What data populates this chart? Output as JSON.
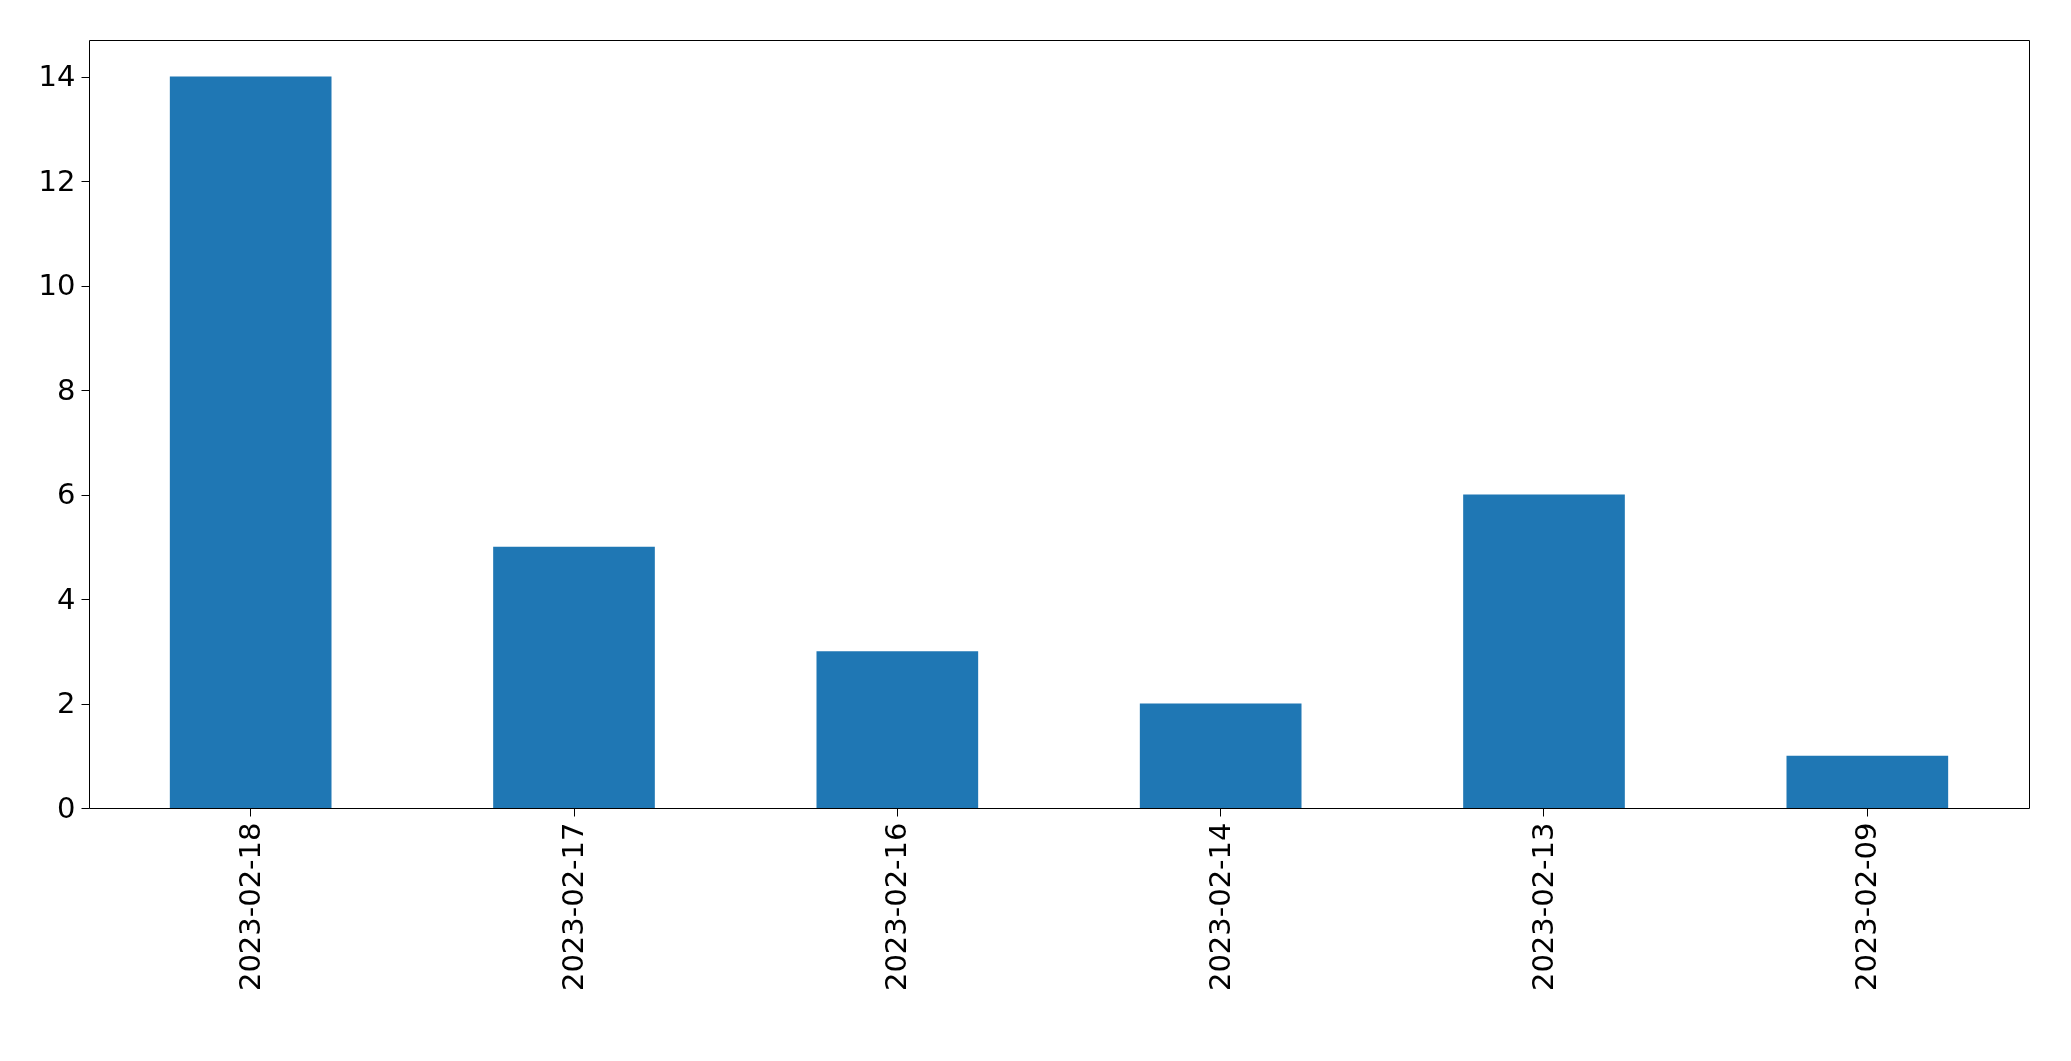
{
  "chart_data": {
    "type": "bar",
    "categories": [
      "2023-02-18",
      "2023-02-17",
      "2023-02-16",
      "2023-02-14",
      "2023-02-13",
      "2023-02-09"
    ],
    "values": [
      14,
      5,
      3,
      2,
      6,
      1
    ],
    "color": "#1f77b4",
    "ylim": [
      0,
      14.7
    ],
    "yticks": [
      0,
      2,
      4,
      6,
      8,
      10,
      12,
      14
    ],
    "grid": false
  }
}
